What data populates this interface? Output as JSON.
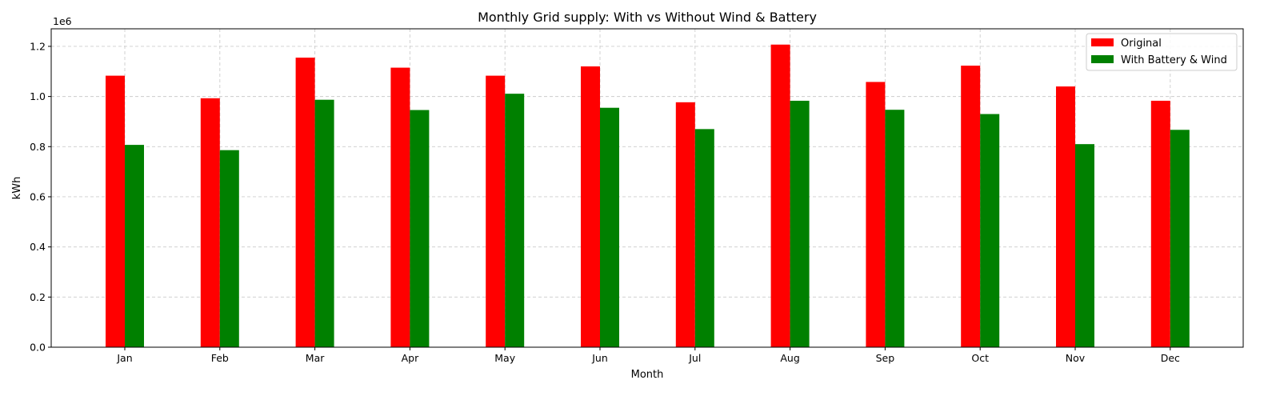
{
  "chart_data": {
    "type": "bar",
    "title": "Monthly Grid supply: With vs Without Wind & Battery",
    "xlabel": "Month",
    "ylabel": "kWh",
    "y_scale_label": "1e6",
    "ylim": [
      0,
      1270000
    ],
    "yticks": [
      0,
      200000,
      400000,
      600000,
      800000,
      1000000,
      1200000
    ],
    "ytick_labels": [
      "0.0",
      "0.2",
      "0.4",
      "0.6",
      "0.8",
      "1.0",
      "1.2"
    ],
    "grid": true,
    "legend_position": "top-right",
    "categories": [
      "Jan",
      "Feb",
      "Mar",
      "Apr",
      "May",
      "Jun",
      "Jul",
      "Aug",
      "Sep",
      "Oct",
      "Nov",
      "Dec"
    ],
    "series": [
      {
        "name": "Original",
        "color": "#ff0000",
        "values": [
          1083000,
          993000,
          1155000,
          1115000,
          1083000,
          1120000,
          977000,
          1207000,
          1058000,
          1123000,
          1040000,
          983000
        ]
      },
      {
        "name": "With Battery & Wind",
        "color": "#008000",
        "values": [
          807000,
          786000,
          987000,
          946000,
          1011000,
          955000,
          870000,
          983000,
          947000,
          930000,
          810000,
          867000
        ]
      }
    ]
  }
}
